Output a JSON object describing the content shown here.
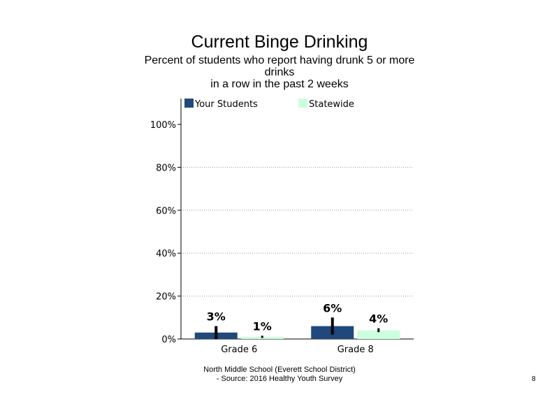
{
  "chart_data": {
    "type": "bar",
    "title": "Current Binge Drinking",
    "subtitle_lines": [
      "Percent of students  who report having drunk 5 or more drinks",
      "in a row in the past 2 weeks"
    ],
    "categories": [
      "Grade 6",
      "Grade 8"
    ],
    "series": [
      {
        "name": "Your Students",
        "values": [
          3,
          6
        ],
        "labels": [
          "3%",
          "6%"
        ],
        "ci_low": [
          0,
          2
        ],
        "ci_high": [
          6,
          10
        ],
        "color": "#1f497d"
      },
      {
        "name": "Statewide",
        "values": [
          1,
          4
        ],
        "labels": [
          "1%",
          "4%"
        ],
        "ci_low": [
          0.5,
          3.2
        ],
        "ci_high": [
          1.5,
          5
        ],
        "color": "#ccffdd"
      }
    ],
    "ylim": [
      0,
      100
    ],
    "yticks": [
      0,
      20,
      40,
      60,
      80,
      100
    ],
    "ytick_labels": [
      "0%",
      "20%",
      "40%",
      "60%",
      "80%",
      "100%"
    ],
    "grid": true,
    "legend_position": "top"
  },
  "footer": {
    "line1": "North Middle School (Everett School District)",
    "line2": " - Source: 2016 Healthy  Youth Survey"
  },
  "page_number": "8"
}
